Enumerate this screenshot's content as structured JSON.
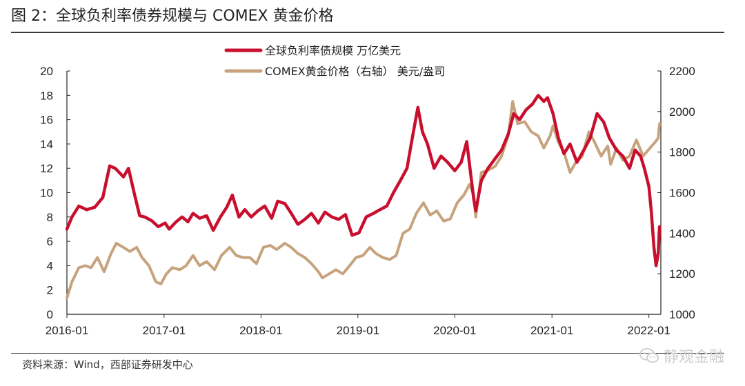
{
  "figure": {
    "title": "图 2：全球负利率债券规模与 COMEX 黄金价格",
    "source": "资料来源：Wind，西部证券研发中心",
    "watermark": "静观金融"
  },
  "chart_data": {
    "type": "line",
    "title": "",
    "xlabel": "",
    "ylabel": "",
    "x_tick_labels": [
      "2016-01",
      "2017-01",
      "2018-01",
      "2019-01",
      "2020-01",
      "2021-01",
      "2022-01"
    ],
    "x_range": [
      "2016-01-01",
      "2022-02-15"
    ],
    "y_left": {
      "ticks": [
        0,
        2,
        4,
        6,
        8,
        10,
        12,
        14,
        16,
        18,
        20
      ],
      "range": [
        0,
        20
      ]
    },
    "y_right": {
      "ticks": [
        1000,
        1200,
        1400,
        1600,
        1800,
        2000,
        2200
      ],
      "range": [
        1000,
        2200
      ]
    },
    "legend_position": "top-center",
    "grid": false,
    "series": [
      {
        "name": "全球负利率债规模 万亿美元",
        "axis": "left",
        "color": "#c8102e",
        "x": [
          "2016-01-01",
          "2016-01-20",
          "2016-02-15",
          "2016-03-15",
          "2016-04-15",
          "2016-05-15",
          "2016-06-10",
          "2016-07-01",
          "2016-08-01",
          "2016-08-20",
          "2016-09-10",
          "2016-10-01",
          "2016-10-20",
          "2016-11-15",
          "2016-12-10",
          "2017-01-05",
          "2017-01-20",
          "2017-02-15",
          "2017-03-10",
          "2017-04-01",
          "2017-04-20",
          "2017-05-15",
          "2017-06-10",
          "2017-07-05",
          "2017-08-01",
          "2017-08-25",
          "2017-09-15",
          "2017-10-10",
          "2017-11-01",
          "2017-11-25",
          "2017-12-20",
          "2018-01-15",
          "2018-02-10",
          "2018-03-05",
          "2018-04-01",
          "2018-04-25",
          "2018-05-20",
          "2018-06-15",
          "2018-07-10",
          "2018-08-05",
          "2018-08-30",
          "2018-09-25",
          "2018-10-20",
          "2018-11-15",
          "2018-12-10",
          "2019-01-05",
          "2019-02-01",
          "2019-03-01",
          "2019-03-25",
          "2019-04-20",
          "2019-05-15",
          "2019-06-10",
          "2019-07-05",
          "2019-07-25",
          "2019-08-15",
          "2019-09-01",
          "2019-09-20",
          "2019-10-15",
          "2019-11-10",
          "2019-12-05",
          "2020-01-01",
          "2020-01-25",
          "2020-02-15",
          "2020-03-01",
          "2020-03-12",
          "2020-03-20",
          "2020-04-10",
          "2020-05-05",
          "2020-06-01",
          "2020-06-25",
          "2020-07-20",
          "2020-08-10",
          "2020-09-01",
          "2020-09-25",
          "2020-10-20",
          "2020-11-10",
          "2020-12-01",
          "2020-12-15",
          "2021-01-05",
          "2021-01-25",
          "2021-02-15",
          "2021-03-10",
          "2021-04-05",
          "2021-05-01",
          "2021-05-25",
          "2021-06-20",
          "2021-07-15",
          "2021-08-05",
          "2021-09-01",
          "2021-09-25",
          "2021-10-20",
          "2021-11-10",
          "2021-12-01",
          "2021-12-15",
          "2022-01-01",
          "2022-01-10",
          "2022-01-20",
          "2022-01-28",
          "2022-02-05",
          "2022-02-10"
        ],
        "y": [
          7.0,
          8.0,
          8.9,
          8.6,
          8.8,
          9.6,
          12.2,
          12.0,
          11.3,
          12.0,
          10.0,
          8.1,
          8.0,
          7.7,
          7.2,
          7.5,
          7.0,
          7.6,
          8.0,
          7.6,
          8.3,
          7.9,
          8.1,
          6.9,
          8.0,
          8.8,
          9.8,
          8.0,
          8.6,
          8.0,
          8.5,
          8.9,
          7.9,
          9.3,
          9.1,
          8.3,
          7.4,
          7.8,
          8.3,
          7.5,
          8.4,
          8.0,
          7.8,
          8.2,
          6.5,
          6.7,
          8.0,
          8.3,
          8.6,
          8.9,
          10.0,
          11.0,
          12.0,
          14.5,
          17.0,
          15.0,
          14.0,
          12.0,
          13.0,
          12.5,
          11.8,
          12.5,
          14.2,
          11.5,
          9.5,
          8.5,
          11.0,
          12.0,
          12.8,
          13.5,
          14.8,
          16.5,
          16.0,
          16.8,
          17.3,
          18.0,
          17.5,
          17.8,
          16.5,
          14.5,
          13.2,
          14.0,
          12.5,
          13.5,
          14.5,
          16.5,
          15.8,
          14.5,
          13.5,
          13.0,
          12.0,
          13.5,
          13.0,
          12.0,
          10.5,
          8.5,
          5.5,
          4.0,
          5.0,
          7.2
        ]
      },
      {
        "name": "COMEX黄金价格（右轴） 美元/盎司",
        "axis": "right",
        "color": "#c6a37d",
        "x": [
          "2016-01-01",
          "2016-01-20",
          "2016-02-15",
          "2016-03-10",
          "2016-04-01",
          "2016-04-25",
          "2016-05-20",
          "2016-06-15",
          "2016-07-05",
          "2016-08-01",
          "2016-08-25",
          "2016-09-20",
          "2016-10-10",
          "2016-11-05",
          "2016-12-01",
          "2016-12-20",
          "2017-01-10",
          "2017-02-01",
          "2017-03-01",
          "2017-03-25",
          "2017-04-20",
          "2017-05-15",
          "2017-06-10",
          "2017-07-10",
          "2017-08-05",
          "2017-09-05",
          "2017-09-30",
          "2017-10-25",
          "2017-11-20",
          "2017-12-15",
          "2018-01-10",
          "2018-02-05",
          "2018-03-01",
          "2018-04-01",
          "2018-04-25",
          "2018-05-20",
          "2018-06-15",
          "2018-07-10",
          "2018-08-05",
          "2018-08-20",
          "2018-09-15",
          "2018-10-10",
          "2018-11-05",
          "2018-12-01",
          "2018-12-25",
          "2019-01-20",
          "2019-02-15",
          "2019-03-10",
          "2019-04-05",
          "2019-05-01",
          "2019-05-25",
          "2019-06-20",
          "2019-07-15",
          "2019-08-10",
          "2019-09-05",
          "2019-09-30",
          "2019-10-25",
          "2019-11-20",
          "2019-12-15",
          "2020-01-10",
          "2020-02-05",
          "2020-02-25",
          "2020-03-12",
          "2020-03-20",
          "2020-04-10",
          "2020-05-05",
          "2020-06-01",
          "2020-06-25",
          "2020-07-20",
          "2020-08-06",
          "2020-08-25",
          "2020-09-20",
          "2020-10-15",
          "2020-11-10",
          "2020-12-01",
          "2020-12-25",
          "2021-01-05",
          "2021-01-25",
          "2021-02-15",
          "2021-03-10",
          "2021-04-01",
          "2021-04-25",
          "2021-05-20",
          "2021-06-10",
          "2021-07-05",
          "2021-07-30",
          "2021-08-10",
          "2021-09-01",
          "2021-09-25",
          "2021-10-20",
          "2021-11-15",
          "2021-12-10",
          "2022-01-05",
          "2022-01-25",
          "2022-02-05",
          "2022-02-10"
        ],
        "y": [
          1080,
          1160,
          1230,
          1240,
          1230,
          1280,
          1210,
          1300,
          1350,
          1330,
          1310,
          1330,
          1280,
          1240,
          1160,
          1150,
          1200,
          1230,
          1220,
          1240,
          1290,
          1240,
          1260,
          1220,
          1290,
          1330,
          1290,
          1280,
          1280,
          1250,
          1330,
          1340,
          1320,
          1350,
          1330,
          1300,
          1280,
          1250,
          1210,
          1180,
          1200,
          1220,
          1200,
          1240,
          1280,
          1290,
          1330,
          1300,
          1280,
          1270,
          1290,
          1400,
          1420,
          1500,
          1550,
          1490,
          1510,
          1460,
          1470,
          1550,
          1590,
          1640,
          1590,
          1480,
          1700,
          1710,
          1730,
          1780,
          1880,
          2050,
          1940,
          1950,
          1900,
          1880,
          1820,
          1880,
          1930,
          1850,
          1800,
          1700,
          1750,
          1780,
          1900,
          1850,
          1780,
          1830,
          1740,
          1820,
          1760,
          1780,
          1860,
          1780,
          1820,
          1850,
          1870,
          1940
        ]
      }
    ]
  }
}
